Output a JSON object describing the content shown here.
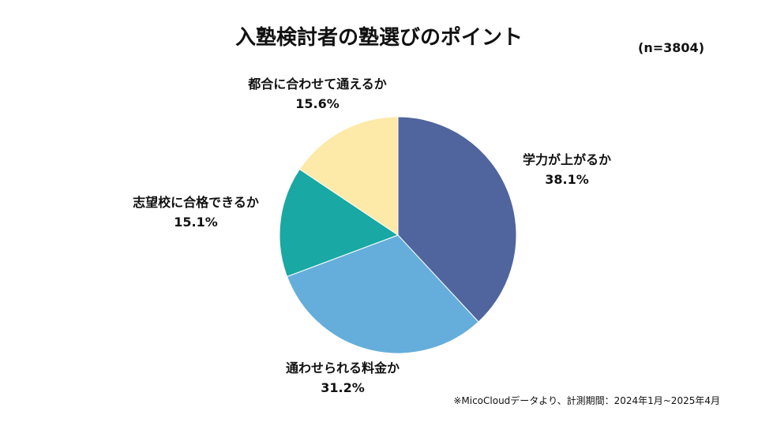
{
  "title": "入塾検討者の塾選びのポイント",
  "sample_size": "(n=3804)",
  "source_note": "※MicoCloudデータより、計測期間：2024年1月~2025年4月",
  "chart_data": {
    "type": "pie",
    "unit": "%",
    "start_angle_deg": 0,
    "direction": "clockwise",
    "legend": "none",
    "slices": [
      {
        "label": "学力が上がるか",
        "value": 38.1,
        "value_label": "38.1%",
        "color": "#50659e"
      },
      {
        "label": "通わせられる料金か",
        "value": 31.2,
        "value_label": "31.2%",
        "color": "#65aedb"
      },
      {
        "label": "志望校に合格できるか",
        "value": 15.1,
        "value_label": "15.1%",
        "color": "#19a8a3"
      },
      {
        "label": "都合に合わせて通えるか",
        "value": 15.6,
        "value_label": "15.6%",
        "color": "#fde9a8"
      }
    ]
  }
}
